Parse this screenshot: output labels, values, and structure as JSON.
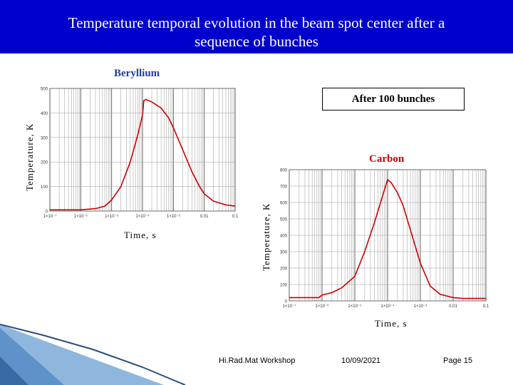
{
  "slide": {
    "title_line1": "Temperature temporal evolution in the beam spot center after a",
    "title_line2": "sequence of bunches",
    "beryllium_label": "Beryllium",
    "bunches_label": "After 100 bunches",
    "carbon_label": "Carbon"
  },
  "footer": {
    "workshop": "Hi.Rad.Mat  Workshop",
    "date": "10/09/2021",
    "page": "Page 15"
  },
  "colors": {
    "title_bg": "#0000cc",
    "curve": "#cc0000",
    "subtitle": "#1f3f9f"
  },
  "chart_data": [
    {
      "type": "line",
      "material": "Beryllium",
      "xlabel": "Time, s",
      "ylabel": "Temperature, K",
      "x_scale": "log",
      "xlim": [
        1e-07,
        0.1
      ],
      "ylim": [
        0,
        500
      ],
      "grid": true,
      "x_ticks": [
        "1×10⁻⁷",
        "1×10⁻⁶",
        "1×10⁻⁵",
        "1×10⁻⁴",
        "1×10⁻³",
        "0.01",
        "0.1"
      ],
      "y_ticks": [
        "0",
        "100",
        "200",
        "300",
        "400",
        "500"
      ],
      "series": [
        {
          "x": [
            1e-07,
            1e-06,
            3e-06,
            6e-06,
            1e-05,
            2e-05,
            4e-05,
            7e-05,
            0.0001,
            0.00011,
            0.00013,
            0.0002,
            0.0004,
            0.0007,
            0.001,
            0.002,
            0.004,
            0.007,
            0.01,
            0.02,
            0.05,
            0.1
          ],
          "y": [
            5,
            5,
            10,
            20,
            45,
            100,
            200,
            310,
            390,
            450,
            455,
            445,
            420,
            380,
            340,
            250,
            160,
            100,
            70,
            40,
            25,
            20
          ]
        }
      ]
    },
    {
      "type": "line",
      "material": "Carbon",
      "xlabel": "Time, s",
      "ylabel": "Temperature, K",
      "x_scale": "log",
      "xlim": [
        1e-07,
        0.1
      ],
      "ylim": [
        0,
        800
      ],
      "grid": true,
      "x_ticks": [
        "1×10⁻⁷",
        "1×10⁻⁶",
        "1×10⁻⁵",
        "1×10⁻⁴",
        "1×10⁻³",
        "0.01",
        "0.1"
      ],
      "y_ticks": [
        "0",
        "100",
        "200",
        "300",
        "400",
        "500",
        "600",
        "700",
        "800"
      ],
      "series": [
        {
          "x": [
            1e-07,
            8e-07,
            1e-06,
            2e-06,
            4e-06,
            1e-05,
            2e-05,
            4e-05,
            7e-05,
            0.0001,
            0.00013,
            0.0002,
            0.0003,
            0.0005,
            0.001,
            0.002,
            0.004,
            0.01,
            0.02,
            0.1
          ],
          "y": [
            20,
            20,
            35,
            50,
            80,
            150,
            300,
            480,
            640,
            740,
            720,
            660,
            580,
            430,
            230,
            90,
            40,
            20,
            15,
            15
          ]
        }
      ]
    }
  ]
}
